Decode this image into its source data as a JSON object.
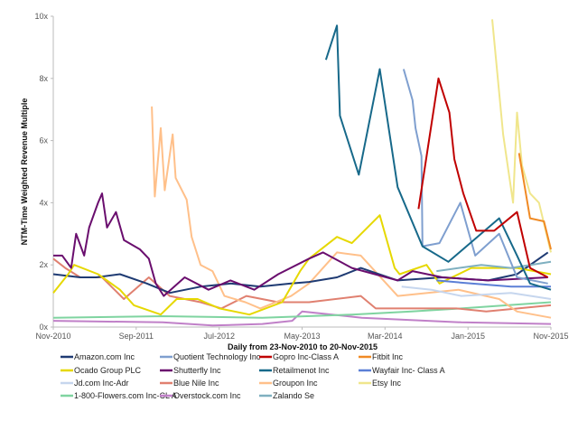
{
  "chart_data": {
    "type": "line",
    "title": "",
    "xlabel": "Daily from 23-Nov-2010 to 20-Nov-2015",
    "ylabel": "NTM-Time Weighted Revenue Multiple",
    "xlim": [
      2010.9,
      2015.9
    ],
    "ylim": [
      0,
      10
    ],
    "x_ticks": [
      {
        "label": "Nov-2010",
        "value": 2010.9
      },
      {
        "label": "Sep-2011",
        "value": 2011.733
      },
      {
        "label": "Jul-2012",
        "value": 2012.567
      },
      {
        "label": "May-2013",
        "value": 2013.4
      },
      {
        "label": "Mar-2014",
        "value": 2014.233
      },
      {
        "label": "Jan-2015",
        "value": 2015.067
      },
      {
        "label": "Nov-2015",
        "value": 2015.9
      }
    ],
    "y_ticks": [
      {
        "label": "0x",
        "value": 0
      },
      {
        "label": "2x",
        "value": 2
      },
      {
        "label": "4x",
        "value": 4
      },
      {
        "label": "6x",
        "value": 6
      },
      {
        "label": "8x",
        "value": 8
      },
      {
        "label": "10x",
        "value": 10
      }
    ],
    "grid": false,
    "legend_position": "bottom",
    "series": [
      {
        "name": "Amazon.com Inc",
        "color": "#1f3b73",
        "points": [
          [
            2010.9,
            1.7
          ],
          [
            2011.17,
            1.6
          ],
          [
            2011.33,
            1.6
          ],
          [
            2011.57,
            1.7
          ],
          [
            2011.84,
            1.4
          ],
          [
            2012.07,
            1.1
          ],
          [
            2012.38,
            1.3
          ],
          [
            2012.68,
            1.4
          ],
          [
            2012.98,
            1.3
          ],
          [
            2013.29,
            1.4
          ],
          [
            2013.47,
            1.45
          ],
          [
            2013.75,
            1.6
          ],
          [
            2013.99,
            1.9
          ],
          [
            2014.36,
            1.5
          ],
          [
            2014.81,
            1.6
          ],
          [
            2015.27,
            1.5
          ],
          [
            2015.56,
            1.7
          ],
          [
            2015.87,
            2.4
          ]
        ]
      },
      {
        "name": "Quotient Technology Inc",
        "color": "#7f9fcf",
        "points": [
          [
            2014.42,
            8.3
          ],
          [
            2014.51,
            7.3
          ],
          [
            2014.54,
            6.4
          ],
          [
            2014.6,
            5.5
          ],
          [
            2014.61,
            2.6
          ],
          [
            2014.78,
            2.7
          ],
          [
            2014.99,
            4.0
          ],
          [
            2015.14,
            2.3
          ],
          [
            2015.38,
            3.0
          ],
          [
            2015.56,
            1.6
          ],
          [
            2015.87,
            1.4
          ]
        ]
      },
      {
        "name": "Gopro Inc-Class A",
        "color": "#c00000",
        "points": [
          [
            2014.57,
            3.8
          ],
          [
            2014.77,
            8.0
          ],
          [
            2014.88,
            6.9
          ],
          [
            2014.93,
            5.4
          ],
          [
            2015.02,
            4.3
          ],
          [
            2015.15,
            3.1
          ],
          [
            2015.33,
            3.1
          ],
          [
            2015.56,
            3.7
          ],
          [
            2015.69,
            1.9
          ],
          [
            2015.87,
            1.6
          ]
        ]
      },
      {
        "name": "Fitbit Inc",
        "color": "#f08a24",
        "points": [
          [
            2015.58,
            5.6
          ],
          [
            2015.69,
            3.5
          ],
          [
            2015.83,
            3.4
          ],
          [
            2015.9,
            2.5
          ]
        ]
      },
      {
        "name": "Ocado Group PLC",
        "color": "#e6d800",
        "points": [
          [
            2010.9,
            1.1
          ],
          [
            2011.05,
            1.7
          ],
          [
            2011.11,
            2.0
          ],
          [
            2011.35,
            1.7
          ],
          [
            2011.57,
            1.2
          ],
          [
            2011.71,
            0.7
          ],
          [
            2011.98,
            0.4
          ],
          [
            2012.14,
            0.9
          ],
          [
            2012.35,
            0.9
          ],
          [
            2012.57,
            0.6
          ],
          [
            2012.87,
            0.4
          ],
          [
            2013.2,
            0.8
          ],
          [
            2013.38,
            1.8
          ],
          [
            2013.47,
            2.2
          ],
          [
            2013.75,
            2.9
          ],
          [
            2013.9,
            2.7
          ],
          [
            2014.18,
            3.6
          ],
          [
            2014.33,
            1.9
          ],
          [
            2014.38,
            1.7
          ],
          [
            2014.65,
            2.0
          ],
          [
            2014.78,
            1.4
          ],
          [
            2015.1,
            1.9
          ],
          [
            2015.56,
            1.9
          ],
          [
            2015.9,
            1.7
          ]
        ]
      },
      {
        "name": "Shutterfly Inc",
        "color": "#6a0e6e",
        "points": [
          [
            2010.9,
            2.3
          ],
          [
            2010.99,
            2.3
          ],
          [
            2011.08,
            1.9
          ],
          [
            2011.13,
            3.0
          ],
          [
            2011.21,
            2.3
          ],
          [
            2011.26,
            3.2
          ],
          [
            2011.35,
            4.0
          ],
          [
            2011.39,
            4.3
          ],
          [
            2011.44,
            3.2
          ],
          [
            2011.53,
            3.7
          ],
          [
            2011.61,
            2.8
          ],
          [
            2011.77,
            2.5
          ],
          [
            2011.86,
            2.2
          ],
          [
            2011.93,
            1.4
          ],
          [
            2012.01,
            1.0
          ],
          [
            2012.22,
            1.6
          ],
          [
            2012.46,
            1.2
          ],
          [
            2012.68,
            1.5
          ],
          [
            2012.92,
            1.2
          ],
          [
            2013.16,
            1.7
          ],
          [
            2013.47,
            2.2
          ],
          [
            2013.61,
            2.4
          ],
          [
            2013.9,
            1.9
          ],
          [
            2014.36,
            1.5
          ],
          [
            2014.51,
            1.8
          ],
          [
            2014.81,
            1.6
          ],
          [
            2015.27,
            1.5
          ],
          [
            2015.87,
            1.6
          ]
        ]
      },
      {
        "name": "Retailmenot Inc",
        "color": "#17698a",
        "points": [
          [
            2013.64,
            8.6
          ],
          [
            2013.75,
            9.7
          ],
          [
            2013.78,
            6.8
          ],
          [
            2013.97,
            4.9
          ],
          [
            2014.18,
            8.3
          ],
          [
            2014.36,
            4.5
          ],
          [
            2014.61,
            2.6
          ],
          [
            2014.87,
            2.1
          ],
          [
            2015.38,
            3.5
          ],
          [
            2015.56,
            2.3
          ],
          [
            2015.69,
            1.4
          ],
          [
            2015.9,
            1.2
          ]
        ]
      },
      {
        "name": "Wayfair Inc- Class A",
        "color": "#5b7fd6",
        "points": [
          [
            2014.75,
            1.5
          ],
          [
            2015.1,
            1.4
          ],
          [
            2015.5,
            1.3
          ],
          [
            2015.9,
            1.3
          ]
        ]
      },
      {
        "name": "Jd.com Inc-Adr",
        "color": "#c6d6ee",
        "points": [
          [
            2014.4,
            1.3
          ],
          [
            2014.7,
            1.2
          ],
          [
            2015.0,
            1.0
          ],
          [
            2015.5,
            1.1
          ],
          [
            2015.9,
            0.9
          ]
        ]
      },
      {
        "name": "Blue Nile Inc",
        "color": "#e08070",
        "points": [
          [
            2010.9,
            2.2
          ],
          [
            2011.02,
            1.9
          ],
          [
            2011.17,
            1.6
          ],
          [
            2011.39,
            1.6
          ],
          [
            2011.61,
            0.9
          ],
          [
            2011.86,
            1.6
          ],
          [
            2012.07,
            1.0
          ],
          [
            2012.38,
            0.8
          ],
          [
            2012.59,
            0.6
          ],
          [
            2012.84,
            1.0
          ],
          [
            2013.16,
            0.8
          ],
          [
            2013.47,
            0.8
          ],
          [
            2013.99,
            1.0
          ],
          [
            2014.14,
            0.6
          ],
          [
            2014.95,
            0.6
          ],
          [
            2015.25,
            0.5
          ],
          [
            2015.9,
            0.7
          ]
        ]
      },
      {
        "name": "Groupon Inc",
        "color": "#ffc08a",
        "points": [
          [
            2011.89,
            7.1
          ],
          [
            2011.92,
            4.2
          ],
          [
            2011.98,
            6.4
          ],
          [
            2012.02,
            4.4
          ],
          [
            2012.1,
            6.2
          ],
          [
            2012.13,
            4.8
          ],
          [
            2012.24,
            4.1
          ],
          [
            2012.29,
            2.9
          ],
          [
            2012.38,
            2.0
          ],
          [
            2012.5,
            1.8
          ],
          [
            2012.62,
            1.0
          ],
          [
            2012.83,
            0.8
          ],
          [
            2012.98,
            0.6
          ],
          [
            2013.29,
            1.0
          ],
          [
            2013.47,
            1.4
          ],
          [
            2013.75,
            2.4
          ],
          [
            2013.99,
            2.3
          ],
          [
            2014.36,
            1.0
          ],
          [
            2014.97,
            1.2
          ],
          [
            2015.38,
            0.9
          ],
          [
            2015.56,
            0.5
          ],
          [
            2015.9,
            0.3
          ]
        ]
      },
      {
        "name": "Etsy Inc",
        "color": "#f0e68c",
        "points": [
          [
            2015.31,
            9.9
          ],
          [
            2015.42,
            6.2
          ],
          [
            2015.52,
            4.0
          ],
          [
            2015.56,
            6.9
          ],
          [
            2015.61,
            5.2
          ],
          [
            2015.69,
            4.3
          ],
          [
            2015.78,
            4.0
          ],
          [
            2015.9,
            2.4
          ]
        ]
      },
      {
        "name": "1-800-Flowers.com Inc-CL A",
        "color": "#7fd4a0",
        "points": [
          [
            2010.9,
            0.3
          ],
          [
            2012.0,
            0.35
          ],
          [
            2013.0,
            0.3
          ],
          [
            2013.9,
            0.4
          ],
          [
            2014.5,
            0.5
          ],
          [
            2015.0,
            0.6
          ],
          [
            2015.9,
            0.8
          ]
        ]
      },
      {
        "name": "Overstock.com Inc",
        "color": "#c080c8",
        "points": [
          [
            2010.9,
            0.2
          ],
          [
            2012.0,
            0.15
          ],
          [
            2012.5,
            0.05
          ],
          [
            2013.0,
            0.1
          ],
          [
            2013.3,
            0.2
          ],
          [
            2013.4,
            0.5
          ],
          [
            2014.0,
            0.3
          ],
          [
            2015.0,
            0.15
          ],
          [
            2015.9,
            0.1
          ]
        ]
      },
      {
        "name": "Zalando Se",
        "color": "#7fb0c0",
        "points": [
          [
            2014.75,
            1.8
          ],
          [
            2015.2,
            2.0
          ],
          [
            2015.5,
            1.9
          ],
          [
            2015.9,
            2.1
          ]
        ]
      }
    ]
  }
}
